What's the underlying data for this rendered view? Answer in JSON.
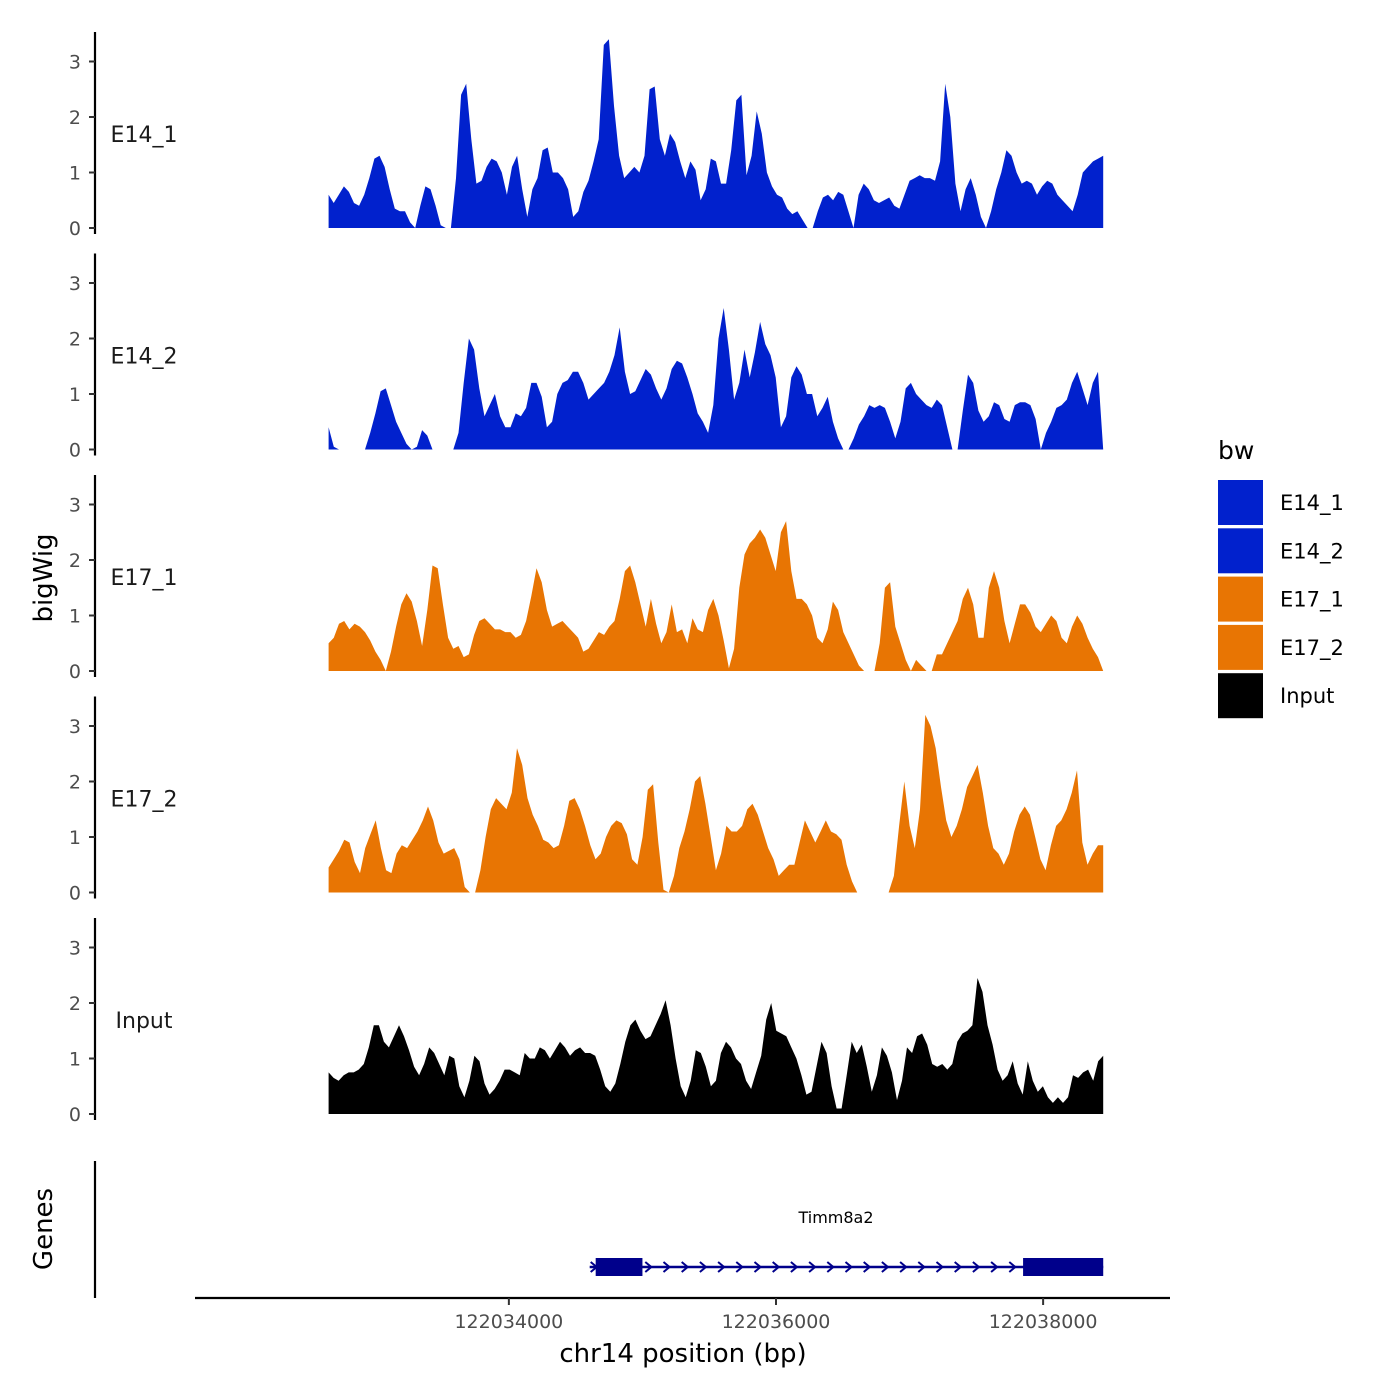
{
  "chart_data": {
    "type": "area",
    "y_title": "bigWig",
    "x_title": "chr14 position (bp)",
    "genes_title": "Genes",
    "x_range": [
      122032650,
      122038450
    ],
    "x_axis_limits": [
      122031650,
      122038950
    ],
    "x_ticks": [
      122034000,
      122036000,
      122038000
    ],
    "x_tick_labels": [
      "122034000",
      "122036000",
      "122038000"
    ],
    "y_range": [
      0,
      3.5
    ],
    "y_ticks": [
      0,
      1,
      2,
      3
    ],
    "y_tick_labels": [
      "0",
      "1",
      "2",
      "3"
    ],
    "legend": {
      "title": "bw",
      "items": [
        {
          "name": "E14_1",
          "color": "#0121CD"
        },
        {
          "name": "E14_2",
          "color": "#0121CD"
        },
        {
          "name": "E17_1",
          "color": "#E87503"
        },
        {
          "name": "E17_2",
          "color": "#E87503"
        },
        {
          "name": "Input",
          "color": "#000000"
        }
      ]
    },
    "tracks": [
      {
        "name": "E14_1",
        "color": "#0121CD",
        "values": [
          0.6,
          0.45,
          0.6,
          0.75,
          0.65,
          0.45,
          0.4,
          0.6,
          0.9,
          1.25,
          1.3,
          1.1,
          0.7,
          0.35,
          0.3,
          0.3,
          0.1,
          0.0,
          0.4,
          0.75,
          0.7,
          0.4,
          0.05,
          0.0,
          0.0,
          0.9,
          2.4,
          2.6,
          1.6,
          0.8,
          0.85,
          1.1,
          1.25,
          1.2,
          1.0,
          0.6,
          1.1,
          1.3,
          0.7,
          0.2,
          0.7,
          0.9,
          1.4,
          1.45,
          1.0,
          1.0,
          0.9,
          0.7,
          0.2,
          0.3,
          0.65,
          0.85,
          1.2,
          1.6,
          3.3,
          3.4,
          2.2,
          1.3,
          0.9,
          1.0,
          1.1,
          1.0,
          1.3,
          2.5,
          2.55,
          1.6,
          1.3,
          1.7,
          1.55,
          1.2,
          0.9,
          1.2,
          1.05,
          0.5,
          0.7,
          1.25,
          1.2,
          0.8,
          0.8,
          1.4,
          2.3,
          2.4,
          0.95,
          1.3,
          2.1,
          1.7,
          1.0,
          0.75,
          0.6,
          0.55,
          0.35,
          0.25,
          0.3,
          0.15,
          0.0,
          0.0,
          0.3,
          0.55,
          0.6,
          0.5,
          0.65,
          0.6,
          0.3,
          0.0,
          0.6,
          0.8,
          0.7,
          0.5,
          0.45,
          0.5,
          0.55,
          0.4,
          0.35,
          0.6,
          0.85,
          0.9,
          0.95,
          0.9,
          0.9,
          0.85,
          1.2,
          2.6,
          2.0,
          0.8,
          0.3,
          0.7,
          0.9,
          0.6,
          0.2,
          0.0,
          0.3,
          0.7,
          1.0,
          1.4,
          1.3,
          1.0,
          0.8,
          0.85,
          0.8,
          0.6,
          0.75,
          0.85,
          0.8,
          0.6,
          0.5,
          0.4,
          0.3,
          0.6,
          1.0,
          1.1,
          1.2,
          1.25,
          1.3
        ]
      },
      {
        "name": "E14_2",
        "color": "#0121CD",
        "values": [
          0.4,
          0.05,
          0.0,
          0.0,
          0.0,
          0.0,
          0.0,
          0.0,
          0.3,
          0.65,
          1.05,
          1.1,
          0.8,
          0.5,
          0.3,
          0.1,
          0.0,
          0.05,
          0.35,
          0.25,
          0.0,
          0.0,
          0.0,
          0.0,
          0.0,
          0.3,
          1.2,
          2.0,
          1.8,
          1.1,
          0.6,
          0.8,
          1.0,
          0.6,
          0.4,
          0.4,
          0.65,
          0.6,
          0.75,
          1.2,
          1.2,
          0.95,
          0.4,
          0.5,
          1.0,
          1.2,
          1.25,
          1.4,
          1.4,
          1.2,
          0.9,
          1.0,
          1.1,
          1.2,
          1.4,
          1.7,
          2.2,
          1.4,
          1.0,
          1.05,
          1.25,
          1.45,
          1.35,
          1.1,
          0.9,
          1.1,
          1.45,
          1.6,
          1.55,
          1.3,
          1.0,
          0.65,
          0.5,
          0.3,
          0.8,
          2.0,
          2.55,
          1.8,
          0.9,
          1.2,
          1.8,
          1.3,
          1.75,
          2.3,
          1.9,
          1.7,
          1.3,
          0.4,
          0.6,
          1.3,
          1.5,
          1.35,
          1.0,
          1.0,
          0.6,
          0.75,
          0.95,
          0.5,
          0.2,
          0.0,
          0.0,
          0.2,
          0.45,
          0.6,
          0.8,
          0.75,
          0.8,
          0.75,
          0.5,
          0.2,
          0.5,
          1.1,
          1.2,
          1.0,
          0.9,
          0.8,
          0.75,
          0.9,
          0.8,
          0.4,
          0.0,
          0.0,
          0.7,
          1.35,
          1.2,
          0.7,
          0.5,
          0.6,
          0.85,
          0.8,
          0.55,
          0.5,
          0.8,
          0.85,
          0.85,
          0.8,
          0.55,
          0.0,
          0.3,
          0.5,
          0.75,
          0.8,
          0.9,
          1.2,
          1.4,
          1.1,
          0.8,
          1.2,
          1.4,
          0.0
        ]
      },
      {
        "name": "E17_1",
        "color": "#E87503",
        "values": [
          0.5,
          0.6,
          0.85,
          0.9,
          0.75,
          0.85,
          0.8,
          0.7,
          0.55,
          0.35,
          0.2,
          0.0,
          0.35,
          0.8,
          1.2,
          1.4,
          1.25,
          0.9,
          0.45,
          1.1,
          1.9,
          1.85,
          1.2,
          0.6,
          0.4,
          0.45,
          0.25,
          0.3,
          0.65,
          0.9,
          0.95,
          0.85,
          0.75,
          0.75,
          0.7,
          0.7,
          0.6,
          0.65,
          0.9,
          1.35,
          1.85,
          1.6,
          1.1,
          0.8,
          0.85,
          0.9,
          0.8,
          0.7,
          0.6,
          0.35,
          0.4,
          0.55,
          0.7,
          0.65,
          0.8,
          0.9,
          1.3,
          1.8,
          1.9,
          1.6,
          1.2,
          0.8,
          1.3,
          0.85,
          0.5,
          0.7,
          1.2,
          0.7,
          0.75,
          0.5,
          0.95,
          0.75,
          0.7,
          1.1,
          1.3,
          1.0,
          0.55,
          0.05,
          0.4,
          1.5,
          2.1,
          2.3,
          2.4,
          2.55,
          2.4,
          2.1,
          1.8,
          2.5,
          2.7,
          1.8,
          1.3,
          1.3,
          1.2,
          1.0,
          0.6,
          0.5,
          0.75,
          1.25,
          1.1,
          0.7,
          0.5,
          0.3,
          0.1,
          0.0,
          0.0,
          0.0,
          0.5,
          1.5,
          1.6,
          0.8,
          0.5,
          0.2,
          0.0,
          0.2,
          0.1,
          0.0,
          0.0,
          0.3,
          0.3,
          0.5,
          0.7,
          0.9,
          1.3,
          1.5,
          1.2,
          0.6,
          0.6,
          1.5,
          1.8,
          1.5,
          0.9,
          0.5,
          0.85,
          1.2,
          1.2,
          1.05,
          0.8,
          0.7,
          0.85,
          1.0,
          0.9,
          0.6,
          0.5,
          0.8,
          1.0,
          0.85,
          0.6,
          0.4,
          0.25,
          0.0
        ]
      },
      {
        "name": "E17_2",
        "color": "#E87503",
        "values": [
          0.45,
          0.6,
          0.75,
          0.95,
          0.9,
          0.55,
          0.35,
          0.8,
          1.05,
          1.3,
          0.8,
          0.4,
          0.35,
          0.7,
          0.85,
          0.8,
          0.95,
          1.1,
          1.3,
          1.55,
          1.3,
          0.9,
          0.7,
          0.75,
          0.8,
          0.6,
          0.1,
          0.0,
          0.0,
          0.4,
          1.0,
          1.5,
          1.7,
          1.6,
          1.5,
          1.8,
          2.6,
          2.3,
          1.7,
          1.4,
          1.2,
          0.95,
          0.9,
          0.8,
          0.85,
          1.2,
          1.65,
          1.7,
          1.5,
          1.2,
          0.85,
          0.6,
          0.7,
          1.0,
          1.2,
          1.3,
          1.25,
          1.05,
          0.6,
          0.5,
          1.0,
          1.85,
          1.95,
          0.9,
          0.05,
          0.0,
          0.3,
          0.8,
          1.1,
          1.5,
          2.0,
          2.1,
          1.6,
          1.0,
          0.4,
          0.7,
          1.2,
          1.1,
          1.1,
          1.2,
          1.5,
          1.6,
          1.4,
          1.1,
          0.8,
          0.6,
          0.3,
          0.4,
          0.5,
          0.5,
          0.9,
          1.3,
          1.1,
          0.9,
          1.1,
          1.3,
          1.1,
          1.05,
          0.95,
          0.5,
          0.2,
          0.0,
          0.0,
          0.0,
          0.0,
          0.0,
          0.0,
          0.0,
          0.3,
          1.2,
          2.0,
          1.2,
          0.8,
          1.5,
          3.2,
          3.0,
          2.6,
          1.9,
          1.3,
          1.0,
          1.2,
          1.5,
          1.9,
          2.1,
          2.3,
          1.8,
          1.2,
          0.8,
          0.7,
          0.5,
          0.7,
          1.1,
          1.4,
          1.55,
          1.4,
          1.0,
          0.6,
          0.4,
          0.85,
          1.2,
          1.3,
          1.5,
          1.8,
          2.2,
          0.9,
          0.5,
          0.7,
          0.85,
          0.85
        ]
      },
      {
        "name": "Input",
        "color": "#000000",
        "values": [
          0.75,
          0.65,
          0.6,
          0.7,
          0.75,
          0.75,
          0.8,
          0.9,
          1.2,
          1.6,
          1.6,
          1.3,
          1.2,
          1.4,
          1.6,
          1.4,
          1.15,
          0.85,
          0.7,
          0.9,
          1.2,
          1.1,
          0.9,
          0.7,
          1.05,
          1.0,
          0.5,
          0.3,
          0.6,
          1.05,
          0.95,
          0.55,
          0.35,
          0.45,
          0.6,
          0.8,
          0.8,
          0.75,
          0.7,
          1.1,
          1.0,
          1.0,
          1.2,
          1.15,
          1.0,
          1.15,
          1.3,
          1.2,
          1.05,
          1.15,
          1.2,
          1.1,
          1.1,
          1.05,
          0.8,
          0.5,
          0.4,
          0.55,
          0.9,
          1.3,
          1.6,
          1.7,
          1.5,
          1.35,
          1.4,
          1.6,
          1.8,
          2.05,
          1.6,
          1.0,
          0.5,
          0.3,
          0.6,
          1.15,
          1.1,
          0.85,
          0.5,
          0.6,
          1.1,
          1.3,
          1.2,
          1.0,
          0.9,
          0.6,
          0.45,
          0.75,
          1.05,
          1.7,
          2.0,
          1.5,
          1.45,
          1.4,
          1.2,
          1.0,
          0.7,
          0.35,
          0.4,
          0.85,
          1.3,
          1.1,
          0.5,
          0.1,
          0.1,
          0.7,
          1.3,
          1.1,
          1.25,
          0.85,
          0.4,
          0.7,
          1.2,
          1.05,
          0.75,
          0.25,
          0.6,
          1.2,
          1.1,
          1.4,
          1.45,
          1.25,
          0.9,
          0.85,
          0.9,
          0.8,
          0.9,
          1.3,
          1.45,
          1.5,
          1.6,
          2.45,
          2.2,
          1.6,
          1.25,
          0.8,
          0.6,
          0.7,
          0.95,
          0.55,
          0.35,
          0.95,
          0.6,
          0.4,
          0.5,
          0.3,
          0.2,
          0.3,
          0.2,
          0.3,
          0.7,
          0.65,
          0.75,
          0.8,
          0.6,
          0.95,
          1.05
        ]
      }
    ],
    "gene": {
      "name": "Timm8a2",
      "strand": "+",
      "start": 122034650,
      "end": 122038450,
      "exons": [
        [
          122034650,
          122035000
        ],
        [
          122037850,
          122038450
        ]
      ],
      "color": "#00008B"
    }
  }
}
